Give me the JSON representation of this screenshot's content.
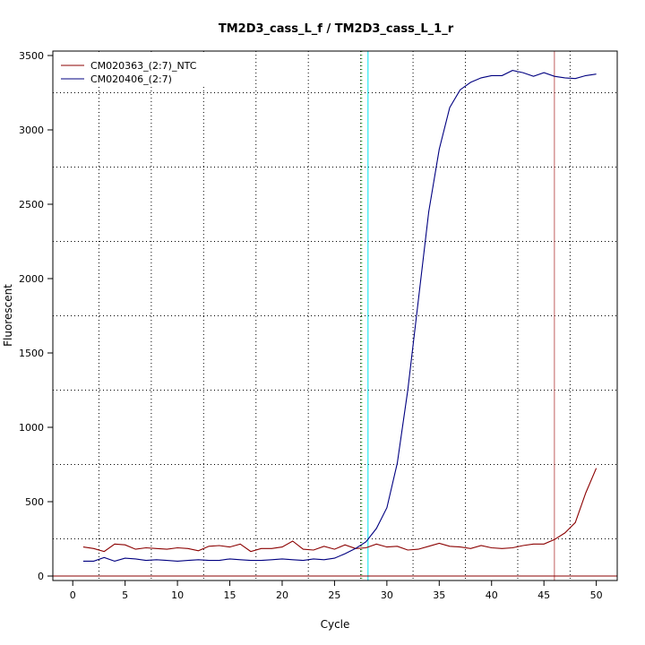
{
  "chart_data": {
    "type": "line",
    "title": "TM2D3_cass_L_f / TM2D3_cass_L_1_r",
    "xlabel": "Cycle",
    "ylabel": "Fluorescent",
    "xlim": [
      -1.9,
      52
    ],
    "ylim": [
      -30,
      3530
    ],
    "xticks": [
      0,
      5,
      10,
      15,
      20,
      25,
      30,
      35,
      40,
      45,
      50
    ],
    "yticks": [
      0,
      500,
      1000,
      1500,
      2000,
      2500,
      3000,
      3500
    ],
    "grid": true,
    "legend_position": "top-left",
    "baseline": 0,
    "vlines": [
      {
        "x": 27.6,
        "color": "#00aa00",
        "style": "dotted"
      },
      {
        "x": 28.2,
        "color": "#00e5ee",
        "style": "solid"
      },
      {
        "x": 46.0,
        "color": "#c06060",
        "style": "solid"
      }
    ],
    "series": [
      {
        "name": "CM020363_(2:7)_NTC",
        "color": "#8b0000",
        "x": [
          1,
          2,
          3,
          4,
          5,
          6,
          7,
          8,
          9,
          10,
          11,
          12,
          13,
          14,
          15,
          16,
          17,
          18,
          19,
          20,
          21,
          22,
          23,
          24,
          25,
          26,
          27,
          28,
          29,
          30,
          31,
          32,
          33,
          34,
          35,
          36,
          37,
          38,
          39,
          40,
          41,
          42,
          43,
          44,
          45,
          46,
          47,
          48,
          49,
          50
        ],
        "values": [
          195,
          185,
          165,
          215,
          210,
          180,
          190,
          185,
          180,
          190,
          185,
          170,
          200,
          205,
          195,
          215,
          165,
          185,
          185,
          195,
          235,
          180,
          175,
          200,
          180,
          210,
          185,
          190,
          215,
          195,
          200,
          175,
          180,
          200,
          220,
          200,
          195,
          185,
          205,
          190,
          185,
          190,
          205,
          215,
          215,
          245,
          290,
          360,
          560,
          725
        ]
      },
      {
        "name": "CM020406_(2:7)",
        "color": "#000080",
        "x": [
          1,
          2,
          3,
          4,
          5,
          6,
          7,
          8,
          9,
          10,
          11,
          12,
          13,
          14,
          15,
          16,
          17,
          18,
          19,
          20,
          21,
          22,
          23,
          24,
          25,
          26,
          27,
          28,
          29,
          30,
          31,
          32,
          33,
          34,
          35,
          36,
          37,
          38,
          39,
          40,
          41,
          42,
          43,
          44,
          45,
          46,
          47,
          48,
          49,
          50
        ],
        "values": [
          100,
          100,
          125,
          100,
          120,
          115,
          105,
          110,
          105,
          100,
          105,
          110,
          105,
          105,
          115,
          110,
          105,
          105,
          110,
          115,
          110,
          105,
          115,
          110,
          120,
          150,
          185,
          230,
          320,
          460,
          760,
          1250,
          1850,
          2450,
          2870,
          3150,
          3270,
          3320,
          3350,
          3365,
          3365,
          3400,
          3385,
          3360,
          3385,
          3360,
          3350,
          3345,
          3365,
          3375
        ]
      }
    ]
  }
}
